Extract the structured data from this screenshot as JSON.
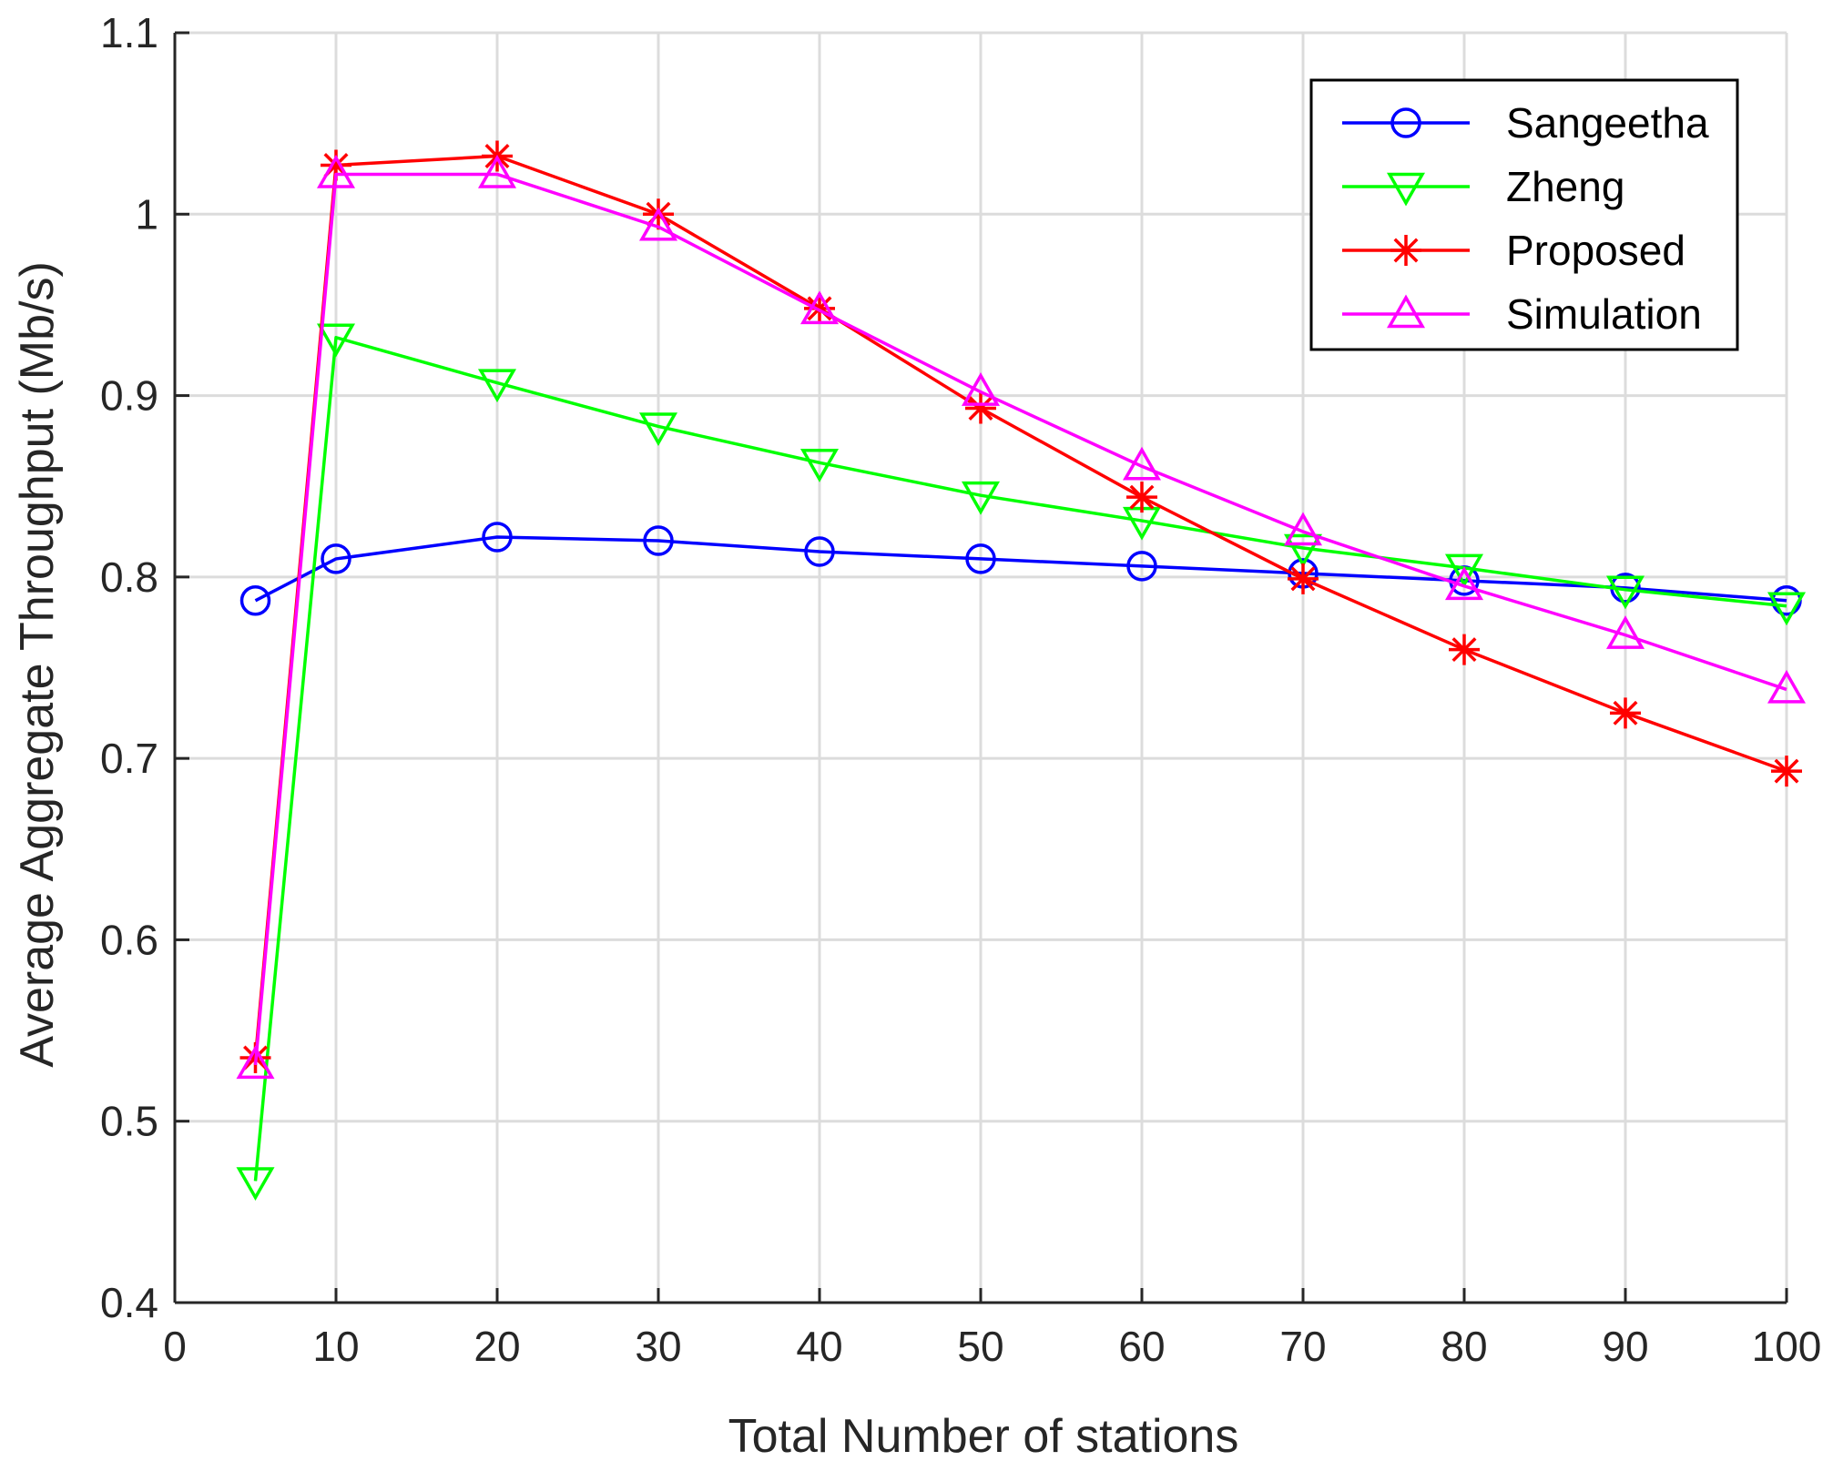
{
  "chart_data": {
    "type": "line",
    "title": "",
    "xlabel": "Total Number of stations",
    "ylabel": "Average Aggregate Throughput (Mb/s)",
    "xlim": [
      0,
      100
    ],
    "ylim": [
      0.4,
      1.1
    ],
    "xticks": [
      0,
      10,
      20,
      30,
      40,
      50,
      60,
      70,
      80,
      90,
      100
    ],
    "yticks": [
      0.4,
      0.5,
      0.6,
      0.7,
      0.8,
      0.9,
      1,
      1.1
    ],
    "xtick_labels": [
      "0",
      "10",
      "20",
      "30",
      "40",
      "50",
      "60",
      "70",
      "80",
      "90",
      "100"
    ],
    "ytick_labels": [
      "0.4",
      "0.5",
      "0.6",
      "0.7",
      "0.8",
      "0.9",
      "1",
      "1.1"
    ],
    "grid": true,
    "legend_position": "top-right",
    "x": [
      5,
      10,
      20,
      30,
      40,
      50,
      60,
      70,
      80,
      90,
      100
    ],
    "series": [
      {
        "name": "Sangeetha",
        "color": "#0000ff",
        "marker": "circle",
        "values": [
          0.787,
          0.81,
          0.822,
          0.82,
          0.814,
          0.81,
          0.806,
          0.802,
          0.798,
          0.794,
          0.787
        ]
      },
      {
        "name": "Zheng",
        "color": "#00ff00",
        "marker": "triangle-down",
        "values": [
          0.467,
          0.932,
          0.907,
          0.883,
          0.863,
          0.845,
          0.831,
          0.816,
          0.805,
          0.793,
          0.784
        ]
      },
      {
        "name": "Proposed",
        "color": "#ff0000",
        "marker": "asterisk",
        "values": [
          0.535,
          1.027,
          1.032,
          1.0,
          0.948,
          0.893,
          0.844,
          0.799,
          0.76,
          0.725,
          0.693
        ]
      },
      {
        "name": "Simulation",
        "color": "#ff00ff",
        "marker": "triangle-up",
        "values": [
          0.531,
          1.022,
          1.022,
          0.993,
          0.947,
          0.902,
          0.861,
          0.825,
          0.795,
          0.768,
          0.738
        ]
      }
    ]
  }
}
